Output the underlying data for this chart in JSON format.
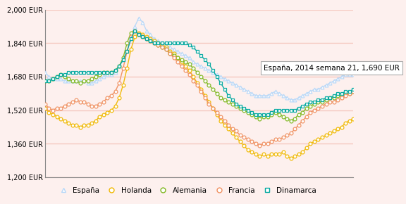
{
  "ylim": [
    1200,
    2000
  ],
  "yticks": [
    1200,
    1360,
    1520,
    1680,
    1840,
    2000
  ],
  "ytick_labels": [
    "1,200 EUR",
    "1,360 EUR",
    "1,520 EUR",
    "1,680 EUR",
    "1,840 EUR",
    "2,000 EUR"
  ],
  "background_color": "#fdf0ee",
  "plot_bg_color": "#fdf0ee",
  "grid_color": "#f5c8c0",
  "annotation_text": "España, 2014 semana 21, 1,690 EUR",
  "legend_labels": [
    "España",
    "Holanda",
    "Alemania",
    "Francia",
    "Dinamarca"
  ],
  "colors": {
    "España": "#b8d8f8",
    "Holanda": "#f0b800",
    "Alemania": "#80b820",
    "Francia": "#f09060",
    "Dinamarca": "#00a8a0"
  },
  "markers": {
    "España": "^",
    "Holanda": "o",
    "Alemania": "o",
    "Francia": "o",
    "Dinamarca": "s"
  },
  "España": [
    1700,
    1680,
    1670,
    1670,
    1670,
    1660,
    1660,
    1660,
    1660,
    1660,
    1660,
    1650,
    1650,
    1660,
    1670,
    1680,
    1690,
    1690,
    1700,
    1730,
    1760,
    1800,
    1860,
    1920,
    1960,
    1940,
    1900,
    1880,
    1860,
    1850,
    1840,
    1830,
    1820,
    1810,
    1800,
    1790,
    1780,
    1770,
    1750,
    1740,
    1730,
    1720,
    1710,
    1700,
    1690,
    1680,
    1670,
    1660,
    1650,
    1640,
    1630,
    1620,
    1610,
    1600,
    1590,
    1590,
    1590,
    1590,
    1600,
    1610,
    1600,
    1590,
    1580,
    1570,
    1570,
    1580,
    1590,
    1600,
    1610,
    1620,
    1620,
    1630,
    1640,
    1650,
    1660,
    1670,
    1680,
    1690,
    1690,
    1690
  ],
  "Holanda": [
    1530,
    1510,
    1500,
    1490,
    1480,
    1470,
    1460,
    1450,
    1450,
    1440,
    1450,
    1450,
    1460,
    1470,
    1490,
    1500,
    1510,
    1520,
    1540,
    1580,
    1640,
    1720,
    1810,
    1870,
    1890,
    1880,
    1870,
    1860,
    1850,
    1840,
    1830,
    1820,
    1800,
    1790,
    1770,
    1750,
    1730,
    1710,
    1680,
    1650,
    1620,
    1590,
    1560,
    1530,
    1500,
    1470,
    1450,
    1430,
    1410,
    1390,
    1370,
    1350,
    1330,
    1320,
    1310,
    1300,
    1310,
    1300,
    1310,
    1310,
    1310,
    1320,
    1300,
    1290,
    1300,
    1310,
    1320,
    1340,
    1360,
    1370,
    1380,
    1390,
    1400,
    1410,
    1420,
    1430,
    1440,
    1460,
    1470,
    1480
  ],
  "Alemania": [
    1660,
    1660,
    1670,
    1680,
    1690,
    1680,
    1670,
    1660,
    1660,
    1650,
    1660,
    1660,
    1670,
    1680,
    1690,
    1700,
    1700,
    1700,
    1710,
    1730,
    1770,
    1840,
    1890,
    1900,
    1880,
    1870,
    1860,
    1850,
    1840,
    1830,
    1820,
    1810,
    1790,
    1780,
    1770,
    1760,
    1750,
    1740,
    1720,
    1700,
    1680,
    1660,
    1640,
    1620,
    1600,
    1580,
    1570,
    1560,
    1550,
    1540,
    1530,
    1520,
    1510,
    1500,
    1490,
    1480,
    1490,
    1490,
    1500,
    1510,
    1500,
    1490,
    1480,
    1470,
    1480,
    1500,
    1510,
    1530,
    1540,
    1550,
    1560,
    1560,
    1570,
    1580,
    1580,
    1590,
    1590,
    1600,
    1600,
    1610
  ],
  "Francia": [
    1550,
    1530,
    1520,
    1530,
    1530,
    1540,
    1550,
    1560,
    1570,
    1560,
    1560,
    1550,
    1540,
    1540,
    1550,
    1560,
    1580,
    1590,
    1610,
    1650,
    1720,
    1800,
    1870,
    1900,
    1880,
    1870,
    1860,
    1850,
    1840,
    1830,
    1820,
    1810,
    1790,
    1770,
    1750,
    1730,
    1710,
    1690,
    1660,
    1640,
    1610,
    1580,
    1550,
    1530,
    1510,
    1490,
    1470,
    1450,
    1430,
    1420,
    1400,
    1390,
    1380,
    1370,
    1360,
    1350,
    1360,
    1360,
    1370,
    1380,
    1380,
    1390,
    1400,
    1410,
    1430,
    1450,
    1470,
    1490,
    1510,
    1520,
    1530,
    1540,
    1550,
    1560,
    1560,
    1570,
    1580,
    1590,
    1600,
    1610
  ],
  "Dinamarca": [
    1660,
    1660,
    1670,
    1680,
    1690,
    1690,
    1700,
    1700,
    1700,
    1700,
    1700,
    1700,
    1700,
    1700,
    1700,
    1700,
    1700,
    1700,
    1710,
    1730,
    1760,
    1800,
    1860,
    1900,
    1880,
    1870,
    1860,
    1850,
    1840,
    1840,
    1840,
    1840,
    1840,
    1840,
    1840,
    1840,
    1840,
    1830,
    1820,
    1800,
    1780,
    1760,
    1740,
    1710,
    1680,
    1650,
    1620,
    1590,
    1570,
    1550,
    1540,
    1530,
    1520,
    1510,
    1500,
    1500,
    1500,
    1500,
    1510,
    1520,
    1520,
    1520,
    1520,
    1520,
    1520,
    1530,
    1540,
    1550,
    1560,
    1560,
    1570,
    1570,
    1580,
    1580,
    1590,
    1600,
    1600,
    1610,
    1610,
    1620
  ]
}
